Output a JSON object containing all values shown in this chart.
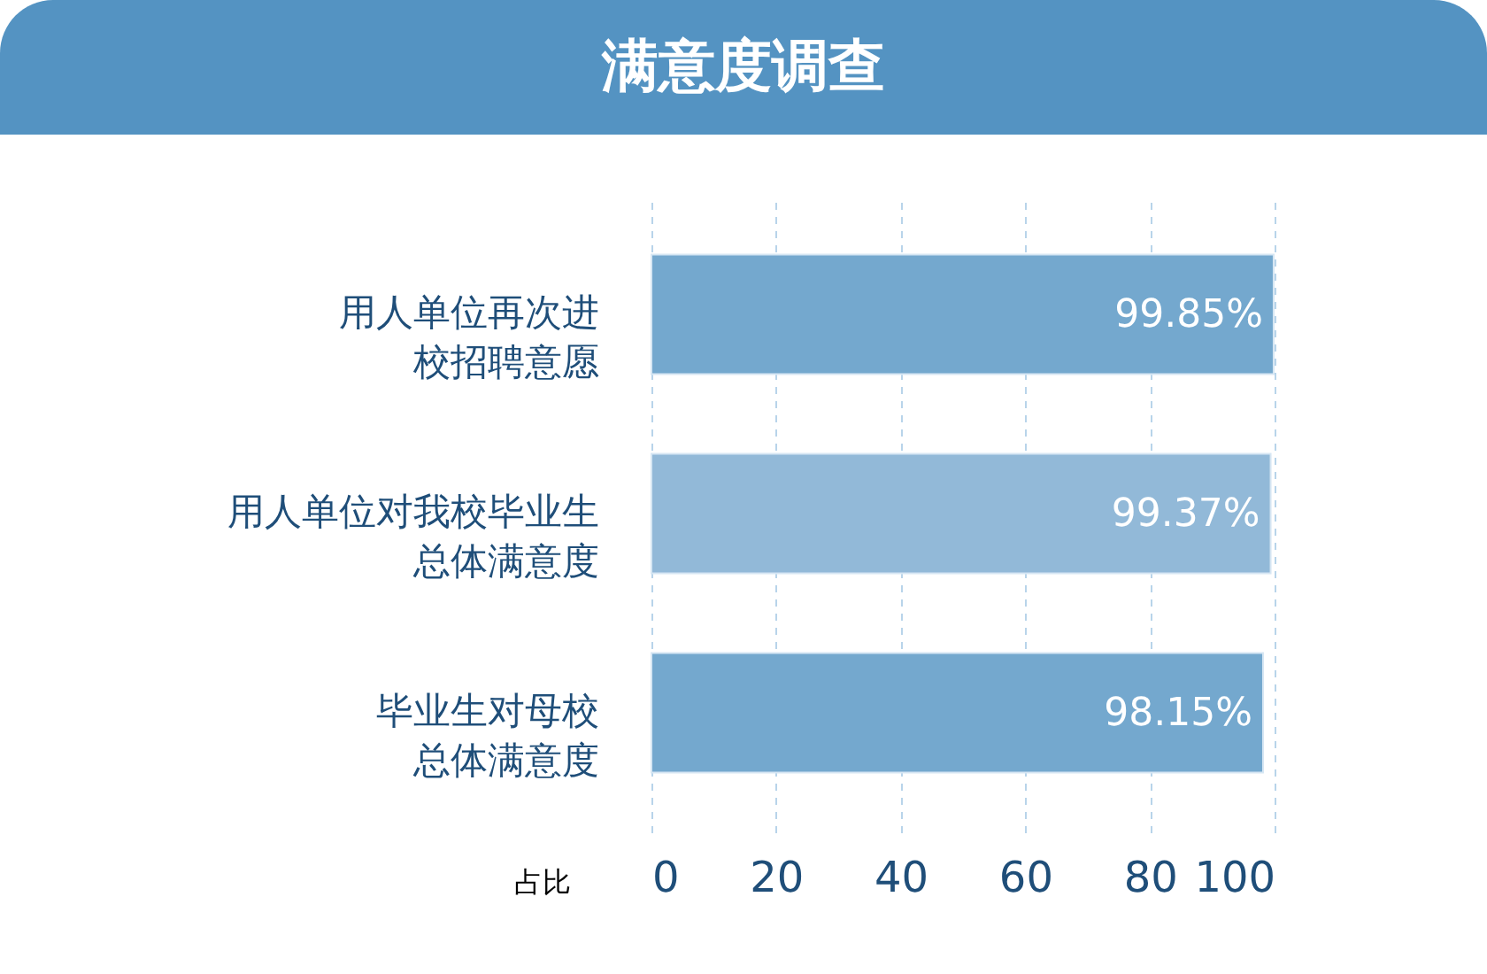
{
  "chart_data": {
    "type": "bar",
    "orientation": "horizontal",
    "title": "满意度调查",
    "xlabel": "占比",
    "categories": [
      "用人单位再次进校招聘意愿",
      "用人单位对我校毕业生总体满意度",
      "毕业生对母校总体满意度"
    ],
    "values": [
      99.85,
      99.37,
      98.15
    ],
    "colors": [
      "#74a8ce",
      "#92b9d8",
      "#74a8ce"
    ],
    "value_labels": [
      "99.85%",
      "99.37%",
      "98.15%"
    ],
    "xlim": [
      0,
      100
    ],
    "xticks": [
      0,
      20,
      40,
      60,
      80,
      100
    ],
    "grid": "x",
    "legend": false
  }
}
